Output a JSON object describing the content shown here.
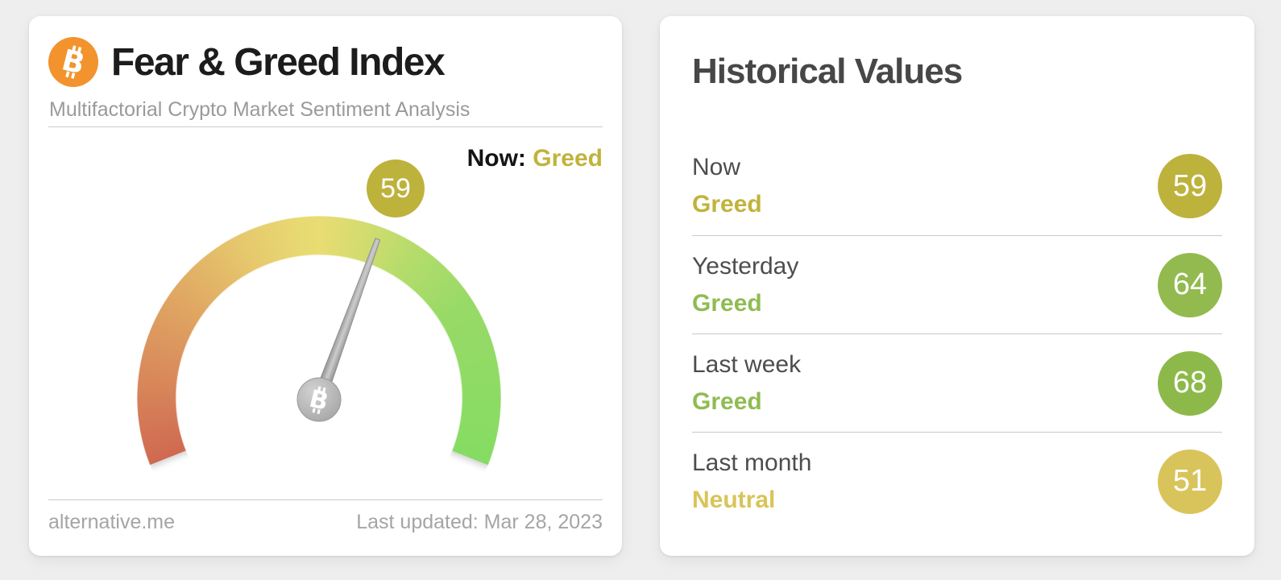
{
  "gauge_card": {
    "title": "Fear & Greed Index",
    "subtitle": "Multifactorial Crypto Market Sentiment Analysis",
    "now_label": "Now:",
    "now_value": "Greed",
    "value": "59",
    "source": "alternative.me",
    "last_updated": "Last updated: Mar 28, 2023",
    "colors": {
      "now_value_text": "#c1b33b",
      "value_badge_bg": "#bdb23c",
      "bitcoin_orange": "#f2932e"
    }
  },
  "history": {
    "title": "Historical Values",
    "rows": [
      {
        "label": "Now",
        "value": "Greed",
        "score": "59",
        "badge_color": "#bdb23c",
        "text_color": "#c1b33b"
      },
      {
        "label": "Yesterday",
        "value": "Greed",
        "score": "64",
        "badge_color": "#92ba4f",
        "text_color": "#8fbc52"
      },
      {
        "label": "Last week",
        "value": "Greed",
        "score": "68",
        "badge_color": "#8db94a",
        "text_color": "#8fbc52"
      },
      {
        "label": "Last month",
        "value": "Neutral",
        "score": "51",
        "badge_color": "#d9c45b",
        "text_color": "#d9c457"
      }
    ]
  },
  "chart_data": {
    "type": "gauge",
    "title": "Fear & Greed Index",
    "value": 59,
    "classification": "Greed",
    "range": [
      0,
      100
    ],
    "scale_colors": [
      "#cf6951",
      "#e0a863",
      "#e8da72",
      "#b4dc6b",
      "#85dc62"
    ],
    "needle_color": "#a2a2a2",
    "historical": [
      {
        "period": "Now",
        "classification": "Greed",
        "value": 59
      },
      {
        "period": "Yesterday",
        "classification": "Greed",
        "value": 64
      },
      {
        "period": "Last week",
        "classification": "Greed",
        "value": 68
      },
      {
        "period": "Last month",
        "classification": "Neutral",
        "value": 51
      }
    ]
  }
}
